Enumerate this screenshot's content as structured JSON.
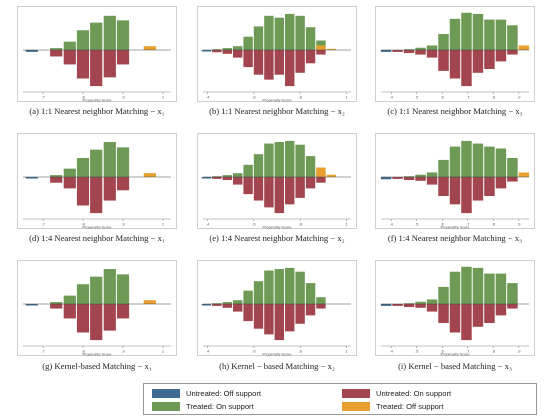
{
  "colors": {
    "untreated_off": "#3d6b92",
    "untreated_on": "#a3454e",
    "treated_on": "#6d9a55",
    "treated_off": "#e7a02f",
    "axis": "#888888",
    "frame": "#cfcfcf"
  },
  "legend": {
    "untreated_off": "Untreated: Off support",
    "untreated_on": "Untreated: On support",
    "treated_on": "Treated: On support",
    "treated_off": "Treated: Off support"
  },
  "chart_data": [
    {
      "id": "a",
      "type": "bar",
      "xlabel": "Propensity Score",
      "caption": "(a) 1:1 Nearest neighbor  Matching  − x₁",
      "ticks": [
        {
          "v": 0.7,
          "label": ".7"
        },
        {
          "v": 0.8,
          "label": ".8"
        },
        {
          "v": 0.9,
          "label": ".9"
        },
        {
          "v": 1.0,
          "label": "1"
        }
      ],
      "xlim": [
        0.65,
        1.02
      ],
      "bin": 0.033,
      "untreated_off": [
        {
          "x": 0.672,
          "v": -0.05
        }
      ],
      "treated_on": [
        {
          "x": 0.733,
          "v": 0.05
        },
        {
          "x": 0.767,
          "v": 0.22
        },
        {
          "x": 0.8,
          "v": 0.52
        },
        {
          "x": 0.833,
          "v": 0.72
        },
        {
          "x": 0.867,
          "v": 0.9
        },
        {
          "x": 0.9,
          "v": 0.78
        }
      ],
      "untreated_on": [
        {
          "x": 0.733,
          "v": -0.17
        },
        {
          "x": 0.767,
          "v": -0.38
        },
        {
          "x": 0.8,
          "v": -0.75
        },
        {
          "x": 0.833,
          "v": -0.95
        },
        {
          "x": 0.867,
          "v": -0.72
        },
        {
          "x": 0.9,
          "v": -0.38
        }
      ],
      "treated_off": [
        {
          "x": 0.967,
          "v": 0.1
        }
      ]
    },
    {
      "id": "b",
      "type": "bar",
      "xlabel": "Propensity Score",
      "caption": "(b) 1:1 Nearest neighbor  Matching  − x₂",
      "ticks": [
        {
          "v": 0.4,
          "label": ".4"
        },
        {
          "v": 0.6,
          "label": ".6"
        },
        {
          "v": 0.8,
          "label": ".8"
        },
        {
          "v": 1.0,
          "label": "1"
        }
      ],
      "xlim": [
        0.38,
        1.02
      ],
      "bin": 0.045,
      "untreated_off": [
        {
          "x": 0.395,
          "v": -0.04
        }
      ],
      "treated_on": [
        {
          "x": 0.44,
          "v": 0.02
        },
        {
          "x": 0.485,
          "v": 0.05
        },
        {
          "x": 0.53,
          "v": 0.1
        },
        {
          "x": 0.575,
          "v": 0.35
        },
        {
          "x": 0.62,
          "v": 0.62
        },
        {
          "x": 0.665,
          "v": 0.9
        },
        {
          "x": 0.71,
          "v": 0.85
        },
        {
          "x": 0.755,
          "v": 0.95
        },
        {
          "x": 0.8,
          "v": 0.9
        },
        {
          "x": 0.845,
          "v": 0.6
        },
        {
          "x": 0.89,
          "v": 0.25
        }
      ],
      "untreated_on": [
        {
          "x": 0.44,
          "v": -0.06
        },
        {
          "x": 0.485,
          "v": -0.1
        },
        {
          "x": 0.53,
          "v": -0.2
        },
        {
          "x": 0.575,
          "v": -0.45
        },
        {
          "x": 0.62,
          "v": -0.65
        },
        {
          "x": 0.665,
          "v": -0.78
        },
        {
          "x": 0.71,
          "v": -0.65
        },
        {
          "x": 0.755,
          "v": -0.95
        },
        {
          "x": 0.8,
          "v": -0.6
        },
        {
          "x": 0.845,
          "v": -0.35
        },
        {
          "x": 0.89,
          "v": -0.12
        }
      ],
      "treated_off": [
        {
          "x": 0.89,
          "v": 0.12
        },
        {
          "x": 0.935,
          "v": 0.03
        }
      ]
    },
    {
      "id": "c",
      "type": "bar",
      "xlabel": "",
      "caption": "(c) 1:1 Nearest neighbor  Matching  − x₃",
      "ticks": [
        {
          "v": 0.4,
          "label": ".4"
        },
        {
          "v": 0.5,
          "label": ".5"
        },
        {
          "v": 0.6,
          "label": ".6"
        },
        {
          "v": 0.7,
          "label": ".7"
        },
        {
          "v": 0.8,
          "label": ".8"
        },
        {
          "v": 0.9,
          "label": ".9"
        }
      ],
      "xlim": [
        0.36,
        0.94
      ],
      "bin": 0.045,
      "untreated_off": [
        {
          "x": 0.38,
          "v": -0.05
        }
      ],
      "treated_on": [
        {
          "x": 0.47,
          "v": 0.02
        },
        {
          "x": 0.515,
          "v": 0.06
        },
        {
          "x": 0.56,
          "v": 0.12
        },
        {
          "x": 0.605,
          "v": 0.42
        },
        {
          "x": 0.65,
          "v": 0.82
        },
        {
          "x": 0.695,
          "v": 0.98
        },
        {
          "x": 0.74,
          "v": 0.95
        },
        {
          "x": 0.785,
          "v": 0.8
        },
        {
          "x": 0.83,
          "v": 0.8
        },
        {
          "x": 0.875,
          "v": 0.65
        }
      ],
      "untreated_on": [
        {
          "x": 0.425,
          "v": -0.05
        },
        {
          "x": 0.47,
          "v": -0.08
        },
        {
          "x": 0.515,
          "v": -0.12
        },
        {
          "x": 0.56,
          "v": -0.2
        },
        {
          "x": 0.605,
          "v": -0.55
        },
        {
          "x": 0.65,
          "v": -0.75
        },
        {
          "x": 0.695,
          "v": -0.95
        },
        {
          "x": 0.74,
          "v": -0.6
        },
        {
          "x": 0.785,
          "v": -0.5
        },
        {
          "x": 0.83,
          "v": -0.3
        },
        {
          "x": 0.875,
          "v": -0.12
        }
      ],
      "treated_off": [
        {
          "x": 0.92,
          "v": 0.12
        }
      ]
    },
    {
      "id": "d",
      "type": "bar",
      "xlabel": "Propensity Score",
      "caption": "(d) 1:4 Nearest neighbor  Matching  − x₁",
      "ticks": [
        {
          "v": 0.7,
          "label": ".7"
        },
        {
          "v": 0.8,
          "label": ".8"
        },
        {
          "v": 0.9,
          "label": ".9"
        },
        {
          "v": 1.0,
          "label": "1"
        }
      ],
      "xlim": [
        0.65,
        1.02
      ],
      "bin": 0.033,
      "untreated_off": [
        {
          "x": 0.672,
          "v": -0.04
        }
      ],
      "treated_on": [
        {
          "x": 0.733,
          "v": 0.05
        },
        {
          "x": 0.767,
          "v": 0.22
        },
        {
          "x": 0.8,
          "v": 0.5
        },
        {
          "x": 0.833,
          "v": 0.72
        },
        {
          "x": 0.867,
          "v": 0.92
        },
        {
          "x": 0.9,
          "v": 0.78
        }
      ],
      "untreated_on": [
        {
          "x": 0.733,
          "v": -0.15
        },
        {
          "x": 0.767,
          "v": -0.3
        },
        {
          "x": 0.8,
          "v": -0.75
        },
        {
          "x": 0.833,
          "v": -0.95
        },
        {
          "x": 0.867,
          "v": -0.62
        },
        {
          "x": 0.9,
          "v": -0.35
        }
      ],
      "treated_off": [
        {
          "x": 0.967,
          "v": 0.1
        }
      ]
    },
    {
      "id": "e",
      "type": "bar",
      "xlabel": "Propensity Score",
      "caption": "(e) 1:4 Nearest neighbor  Matching  − x₂",
      "ticks": [
        {
          "v": 0.4,
          "label": ".4"
        },
        {
          "v": 0.6,
          "label": ".6"
        },
        {
          "v": 0.8,
          "label": ".8"
        },
        {
          "v": 1.0,
          "label": "1"
        }
      ],
      "xlim": [
        0.38,
        1.02
      ],
      "bin": 0.045,
      "untreated_off": [
        {
          "x": 0.395,
          "v": -0.04
        }
      ],
      "treated_on": [
        {
          "x": 0.44,
          "v": 0.02
        },
        {
          "x": 0.485,
          "v": 0.05
        },
        {
          "x": 0.53,
          "v": 0.1
        },
        {
          "x": 0.575,
          "v": 0.32
        },
        {
          "x": 0.62,
          "v": 0.6
        },
        {
          "x": 0.665,
          "v": 0.88
        },
        {
          "x": 0.71,
          "v": 0.92
        },
        {
          "x": 0.755,
          "v": 0.95
        },
        {
          "x": 0.8,
          "v": 0.85
        },
        {
          "x": 0.845,
          "v": 0.55
        },
        {
          "x": 0.89,
          "v": 0.15
        }
      ],
      "untreated_on": [
        {
          "x": 0.44,
          "v": -0.05
        },
        {
          "x": 0.485,
          "v": -0.08
        },
        {
          "x": 0.53,
          "v": -0.2
        },
        {
          "x": 0.575,
          "v": -0.45
        },
        {
          "x": 0.62,
          "v": -0.62
        },
        {
          "x": 0.665,
          "v": -0.8
        },
        {
          "x": 0.71,
          "v": -0.95
        },
        {
          "x": 0.755,
          "v": -0.72
        },
        {
          "x": 0.8,
          "v": -0.55
        },
        {
          "x": 0.845,
          "v": -0.3
        },
        {
          "x": 0.89,
          "v": -0.15
        }
      ],
      "treated_off": [
        {
          "x": 0.89,
          "v": 0.25
        },
        {
          "x": 0.935,
          "v": 0.06
        }
      ]
    },
    {
      "id": "f",
      "type": "bar",
      "xlabel": "Propensity Score",
      "caption": "(f) 1:4 Nearest neighbor  Matching  − x₃",
      "ticks": [
        {
          "v": 0.4,
          "label": ".4"
        },
        {
          "v": 0.5,
          "label": ".5"
        },
        {
          "v": 0.6,
          "label": ".6"
        },
        {
          "v": 0.7,
          "label": ".7"
        },
        {
          "v": 0.8,
          "label": ".8"
        },
        {
          "v": 0.9,
          "label": ".9"
        }
      ],
      "xlim": [
        0.36,
        0.94
      ],
      "bin": 0.045,
      "untreated_off": [
        {
          "x": 0.38,
          "v": -0.06
        }
      ],
      "treated_on": [
        {
          "x": 0.47,
          "v": 0.02
        },
        {
          "x": 0.515,
          "v": 0.06
        },
        {
          "x": 0.56,
          "v": 0.12
        },
        {
          "x": 0.605,
          "v": 0.45
        },
        {
          "x": 0.65,
          "v": 0.8
        },
        {
          "x": 0.695,
          "v": 0.95
        },
        {
          "x": 0.74,
          "v": 0.88
        },
        {
          "x": 0.785,
          "v": 0.8
        },
        {
          "x": 0.83,
          "v": 0.75
        },
        {
          "x": 0.875,
          "v": 0.5
        }
      ],
      "untreated_on": [
        {
          "x": 0.425,
          "v": -0.05
        },
        {
          "x": 0.47,
          "v": -0.08
        },
        {
          "x": 0.515,
          "v": -0.1
        },
        {
          "x": 0.56,
          "v": -0.2
        },
        {
          "x": 0.605,
          "v": -0.5
        },
        {
          "x": 0.65,
          "v": -0.72
        },
        {
          "x": 0.695,
          "v": -0.95
        },
        {
          "x": 0.74,
          "v": -0.62
        },
        {
          "x": 0.785,
          "v": -0.5
        },
        {
          "x": 0.83,
          "v": -0.3
        },
        {
          "x": 0.875,
          "v": -0.12
        }
      ],
      "treated_off": [
        {
          "x": 0.92,
          "v": 0.12
        }
      ]
    },
    {
      "id": "g",
      "type": "bar",
      "xlabel": "Propensity Score",
      "caption": "(g) Kernel-based  Matching  − x₁",
      "ticks": [
        {
          "v": 0.7,
          "label": ".7"
        },
        {
          "v": 0.8,
          "label": ".8"
        },
        {
          "v": 0.9,
          "label": ".9"
        },
        {
          "v": 1.0,
          "label": "1"
        }
      ],
      "xlim": [
        0.65,
        1.02
      ],
      "bin": 0.033,
      "untreated_off": [
        {
          "x": 0.672,
          "v": -0.04
        }
      ],
      "treated_on": [
        {
          "x": 0.733,
          "v": 0.05
        },
        {
          "x": 0.767,
          "v": 0.22
        },
        {
          "x": 0.8,
          "v": 0.52
        },
        {
          "x": 0.833,
          "v": 0.72
        },
        {
          "x": 0.867,
          "v": 0.92
        },
        {
          "x": 0.9,
          "v": 0.78
        }
      ],
      "untreated_on": [
        {
          "x": 0.733,
          "v": -0.12
        },
        {
          "x": 0.767,
          "v": -0.38
        },
        {
          "x": 0.8,
          "v": -0.75
        },
        {
          "x": 0.833,
          "v": -0.95
        },
        {
          "x": 0.867,
          "v": -0.7
        },
        {
          "x": 0.9,
          "v": -0.38
        }
      ],
      "treated_off": [
        {
          "x": 0.967,
          "v": 0.1
        }
      ]
    },
    {
      "id": "h",
      "type": "bar",
      "xlabel": "Propensity Score",
      "caption": "(h) Kernel − based Matching − x₂",
      "ticks": [
        {
          "v": 0.4,
          "label": ".4"
        },
        {
          "v": 0.6,
          "label": ".6"
        },
        {
          "v": 0.8,
          "label": ".8"
        },
        {
          "v": 1.0,
          "label": "1"
        }
      ],
      "xlim": [
        0.38,
        1.02
      ],
      "bin": 0.045,
      "untreated_off": [
        {
          "x": 0.395,
          "v": -0.04
        }
      ],
      "treated_on": [
        {
          "x": 0.44,
          "v": 0.02
        },
        {
          "x": 0.485,
          "v": 0.05
        },
        {
          "x": 0.53,
          "v": 0.1
        },
        {
          "x": 0.575,
          "v": 0.35
        },
        {
          "x": 0.62,
          "v": 0.6
        },
        {
          "x": 0.665,
          "v": 0.88
        },
        {
          "x": 0.71,
          "v": 0.92
        },
        {
          "x": 0.755,
          "v": 0.95
        },
        {
          "x": 0.8,
          "v": 0.85
        },
        {
          "x": 0.845,
          "v": 0.55
        },
        {
          "x": 0.89,
          "v": 0.18
        }
      ],
      "untreated_on": [
        {
          "x": 0.44,
          "v": -0.05
        },
        {
          "x": 0.485,
          "v": -0.1
        },
        {
          "x": 0.53,
          "v": -0.2
        },
        {
          "x": 0.575,
          "v": -0.45
        },
        {
          "x": 0.62,
          "v": -0.65
        },
        {
          "x": 0.665,
          "v": -0.8
        },
        {
          "x": 0.71,
          "v": -0.95
        },
        {
          "x": 0.755,
          "v": -0.72
        },
        {
          "x": 0.8,
          "v": -0.52
        },
        {
          "x": 0.845,
          "v": -0.3
        },
        {
          "x": 0.89,
          "v": -0.12
        }
      ],
      "treated_off": []
    },
    {
      "id": "i",
      "type": "bar",
      "xlabel": "Propensity Score",
      "caption": "(i) Kernel − based Matching − x₃",
      "ticks": [
        {
          "v": 0.4,
          "label": ".4"
        },
        {
          "v": 0.5,
          "label": ".5"
        },
        {
          "v": 0.6,
          "label": ".6"
        },
        {
          "v": 0.7,
          "label": ".7"
        },
        {
          "v": 0.8,
          "label": ".8"
        },
        {
          "v": 0.9,
          "label": ".9"
        }
      ],
      "xlim": [
        0.36,
        0.94
      ],
      "bin": 0.045,
      "untreated_off": [
        {
          "x": 0.38,
          "v": -0.05
        }
      ],
      "treated_on": [
        {
          "x": 0.47,
          "v": 0.02
        },
        {
          "x": 0.515,
          "v": 0.06
        },
        {
          "x": 0.56,
          "v": 0.12
        },
        {
          "x": 0.605,
          "v": 0.45
        },
        {
          "x": 0.65,
          "v": 0.85
        },
        {
          "x": 0.695,
          "v": 0.98
        },
        {
          "x": 0.74,
          "v": 0.95
        },
        {
          "x": 0.785,
          "v": 0.8
        },
        {
          "x": 0.83,
          "v": 0.8
        },
        {
          "x": 0.875,
          "v": 0.55
        }
      ],
      "untreated_on": [
        {
          "x": 0.425,
          "v": -0.05
        },
        {
          "x": 0.47,
          "v": -0.08
        },
        {
          "x": 0.515,
          "v": -0.1
        },
        {
          "x": 0.56,
          "v": -0.2
        },
        {
          "x": 0.605,
          "v": -0.5
        },
        {
          "x": 0.65,
          "v": -0.75
        },
        {
          "x": 0.695,
          "v": -0.95
        },
        {
          "x": 0.74,
          "v": -0.6
        },
        {
          "x": 0.785,
          "v": -0.5
        },
        {
          "x": 0.83,
          "v": -0.3
        },
        {
          "x": 0.875,
          "v": -0.12
        }
      ],
      "treated_off": []
    }
  ]
}
